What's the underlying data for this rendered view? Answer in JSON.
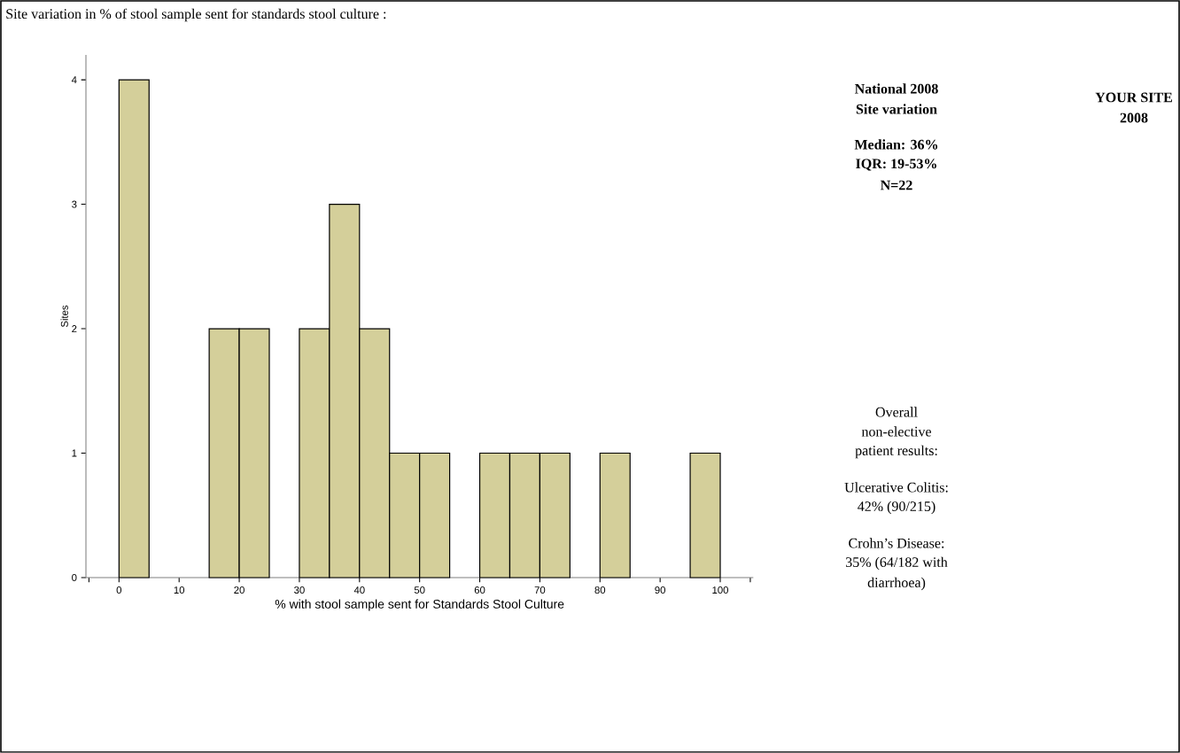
{
  "chart_data": {
    "type": "histogram",
    "title": "Site variation in % of stool sample sent for standards stool culture :",
    "xlabel": "%  with stool sample sent for Standards Stool Culture",
    "ylabel": "Sites",
    "bins": [
      0,
      5,
      10,
      15,
      20,
      25,
      30,
      35,
      40,
      45,
      50,
      55,
      60,
      65,
      70,
      75,
      80,
      85,
      90,
      95,
      100
    ],
    "values": [
      4,
      0,
      0,
      2,
      2,
      0,
      2,
      3,
      2,
      1,
      1,
      0,
      1,
      1,
      1,
      0,
      1,
      0,
      0,
      1
    ],
    "color": "#d4cf9a",
    "xlim": [
      -5.5,
      105.5
    ],
    "ylim": [
      0,
      4.2
    ],
    "xticks": [
      {
        "value": -5,
        "label": null
      },
      0,
      10,
      20,
      30,
      40,
      50,
      60,
      70,
      80,
      90,
      100,
      {
        "value": 105,
        "label": null
      }
    ],
    "yticks": [
      0,
      1,
      2,
      3,
      4
    ],
    "annotations": [
      "National 2008",
      "Site variation",
      "Median: 36%",
      "IQR: 19-53%",
      "N=22",
      "YOUR SITE",
      "2008",
      "Overall",
      "non-elective",
      "patient results:",
      "Ulcerative Colitis:",
      "42% (90/215)",
      "Crohn’s Disease:",
      "35% (64/182 with",
      "diarrhoea)"
    ]
  }
}
